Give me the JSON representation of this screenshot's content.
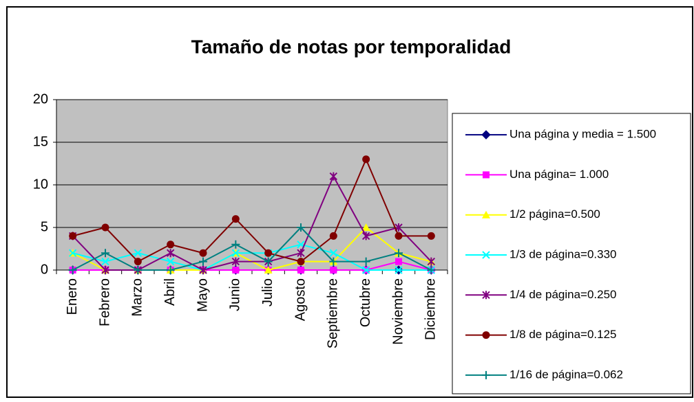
{
  "chart_data": {
    "type": "line",
    "title": "Tamaño de notas por temporalidad",
    "categories": [
      "Enero",
      "Febrero",
      "Marzo",
      "Abril",
      "Mayo",
      "Junio",
      "Julio",
      "Agosto",
      "Septiembre",
      "Octubre",
      "Noviembre",
      "Diciembre"
    ],
    "series": [
      {
        "name": "Una página y media = 1.500",
        "color": "#000080",
        "marker": "diamond",
        "values": [
          0,
          0,
          0,
          0,
          0,
          0,
          0,
          0,
          0,
          0,
          0,
          0
        ]
      },
      {
        "name": "Una página= 1.000",
        "color": "#ff00ff",
        "marker": "square",
        "values": [
          0,
          0,
          0,
          0,
          0,
          0,
          0,
          0,
          0,
          0,
          1,
          0
        ]
      },
      {
        "name": "1/2 página=0.500",
        "color": "#ffff00",
        "marker": "triangle",
        "values": [
          2,
          0,
          0,
          0,
          0,
          2,
          0,
          1,
          1,
          5,
          2,
          1
        ]
      },
      {
        "name": "1/3 de página=0.330",
        "color": "#00ffff",
        "marker": "x",
        "values": [
          2,
          1,
          2,
          1,
          0,
          2,
          2,
          3,
          2,
          0,
          0,
          0
        ]
      },
      {
        "name": "1/4 de página=0.250",
        "color": "#800080",
        "marker": "star",
        "values": [
          4,
          0,
          0,
          2,
          0,
          1,
          1,
          2,
          11,
          4,
          5,
          1
        ]
      },
      {
        "name": "1/8 de página=0.125",
        "color": "#800000",
        "marker": "circle",
        "values": [
          4,
          5,
          1,
          3,
          2,
          6,
          2,
          1,
          4,
          13,
          4,
          4
        ]
      },
      {
        "name": "1/16 de página=0.062",
        "color": "#008080",
        "marker": "plus",
        "values": [
          0,
          2,
          0,
          0,
          1,
          3,
          1,
          5,
          1,
          1,
          2,
          0
        ]
      }
    ],
    "ylim": [
      0,
      20
    ],
    "yticks": [
      0,
      5,
      10,
      15,
      20
    ],
    "grid": true,
    "legend": "right",
    "plot_background": "#c0c0c0"
  }
}
